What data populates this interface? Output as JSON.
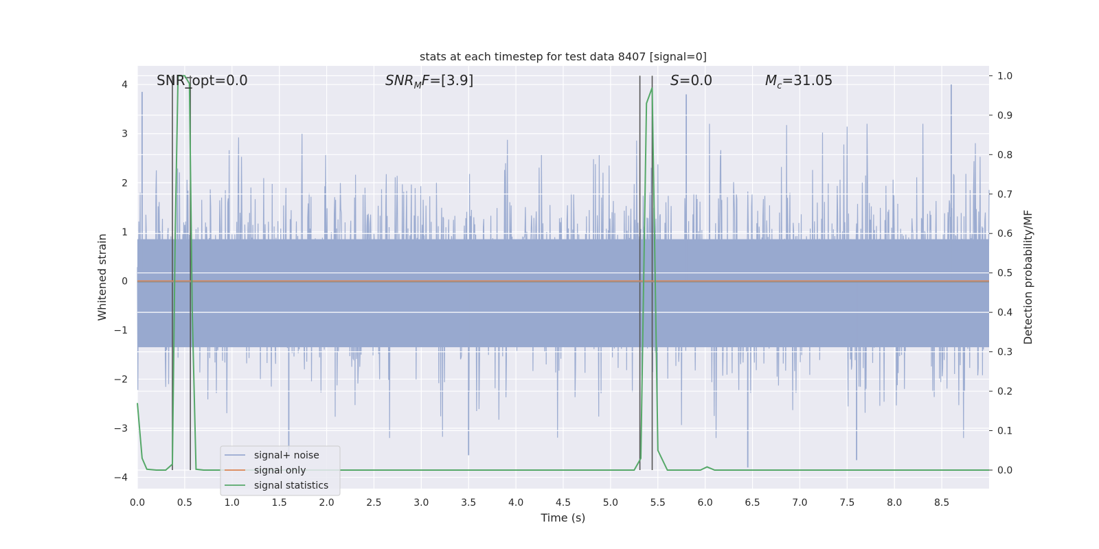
{
  "chart_data": {
    "type": "line",
    "title": "stats at each timestep for test data 8407 [signal=0]",
    "xlabel": "Time (s)",
    "ylabel_left": "Whitened strain",
    "ylabel_right": "Detection probability/MF",
    "xlim": [
      0.0,
      9.0
    ],
    "ylim_left": [
      -4.23,
      4.38
    ],
    "ylim_right": [
      -0.047,
      1.025
    ],
    "xticks": [
      "0.0",
      "0.5",
      "1.0",
      "1.5",
      "2.0",
      "2.5",
      "3.0",
      "3.5",
      "4.0",
      "4.5",
      "5.0",
      "5.5",
      "6.0",
      "6.5",
      "7.0",
      "7.5",
      "8.0",
      "8.5"
    ],
    "yticks_left": [
      "4",
      "3",
      "2",
      "1",
      "0",
      "−1",
      "−2",
      "−3",
      "−4"
    ],
    "yticks_right": [
      "1.0",
      "0.9",
      "0.8",
      "0.7",
      "0.6",
      "0.5",
      "0.4",
      "0.3",
      "0.2",
      "0.1",
      "0.0"
    ],
    "grid": true,
    "legend_placement": "lower-left",
    "annotations": {
      "snr_opt": "SNR_opt=0.0",
      "snr_mf_main": "SNR",
      "snr_mf_sub": "M",
      "snr_mf_rest": "F",
      "snr_mf_value": "=[3.9]",
      "s_main": "S",
      "s_value": "=0.0",
      "mc_main": "M",
      "mc_sub": "c",
      "mc_value": "=31.05"
    },
    "series": [
      {
        "name": "signal+ noise",
        "color": "#98a9cf",
        "description_type": "whitened strain noise (gaussian, approx std 1), sampled",
        "typical_envelope": {
          "upper": 2.8,
          "lower": -2.6
        },
        "peak_values": [
          {
            "x": 0.05,
            "y": 3.85
          },
          {
            "x": 1.6,
            "y": -3.6
          },
          {
            "x": 3.5,
            "y": -3.55
          },
          {
            "x": 5.8,
            "y": 3.8
          },
          {
            "x": 6.45,
            "y": -3.8
          },
          {
            "x": 7.6,
            "y": -3.65
          },
          {
            "x": 8.6,
            "y": 4.0
          }
        ]
      },
      {
        "name": "signal only",
        "color": "#dd8452",
        "x": [
          0.0,
          9.0
        ],
        "y": [
          0.0,
          0.0
        ]
      },
      {
        "name": "signal statistics",
        "color": "#55a868",
        "axis": "right",
        "x": [
          0.0,
          0.05,
          0.1,
          0.2,
          0.3,
          0.37,
          0.4,
          0.43,
          0.45,
          0.5,
          0.55,
          0.58,
          0.62,
          0.7,
          1.0,
          5.25,
          5.32,
          5.38,
          5.44,
          5.5,
          5.6,
          5.95,
          6.02,
          6.1,
          6.2,
          9.0
        ],
        "y": [
          0.17,
          0.03,
          0.002,
          0.0,
          0.0,
          0.015,
          0.6,
          1.0,
          1.0,
          1.0,
          0.98,
          0.4,
          0.002,
          0.0,
          0.0,
          0.0,
          0.03,
          0.93,
          0.97,
          0.05,
          0.0,
          0.0,
          0.008,
          0.0,
          0.0,
          0.0
        ]
      }
    ],
    "vertical_markers": [
      {
        "x": 0.37,
        "color": "#555555"
      },
      {
        "x": 0.56,
        "color": "#555555"
      },
      {
        "x": 5.31,
        "color": "#555555"
      },
      {
        "x": 5.44,
        "color": "#555555"
      }
    ],
    "legend": [
      "signal+ noise",
      "signal only",
      "signal statistics"
    ]
  }
}
